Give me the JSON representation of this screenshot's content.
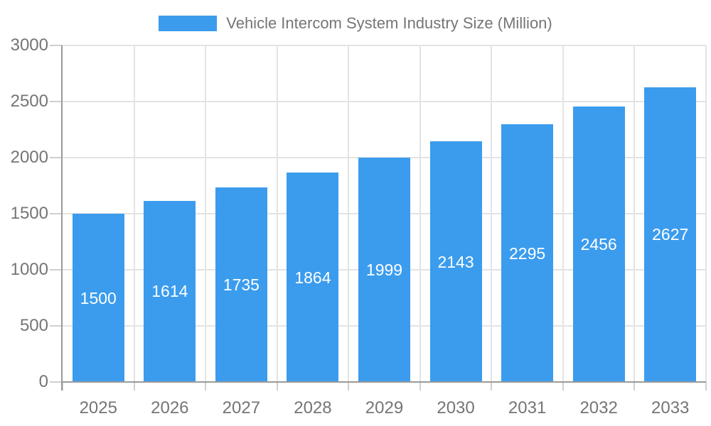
{
  "chart_data": {
    "type": "bar",
    "title": "Vehicle Intercom System Industry Size (Million)",
    "legend_position": "top",
    "categories": [
      "2025",
      "2026",
      "2027",
      "2028",
      "2029",
      "2030",
      "2031",
      "2032",
      "2033"
    ],
    "series": [
      {
        "name": "Vehicle Intercom System Industry Size (Million)",
        "values": [
          1500,
          1614,
          1735,
          1864,
          1999,
          2143,
          2295,
          2456,
          2627
        ]
      }
    ],
    "value_labels": "inside-center",
    "xlabel": "",
    "ylabel": "",
    "ylim": [
      0,
      3000
    ],
    "yticks": [
      0,
      500,
      1000,
      1500,
      2000,
      2500,
      3000
    ],
    "grid": true,
    "colors": {
      "bar": "#3B9CEE",
      "value_label": "#FFFFFF",
      "axis_text": "#757575",
      "axis_line": "#9A9A9A",
      "gridline": "#E3E3E3",
      "tick": "#CFCFCF",
      "background": "#FFFFFF"
    }
  }
}
